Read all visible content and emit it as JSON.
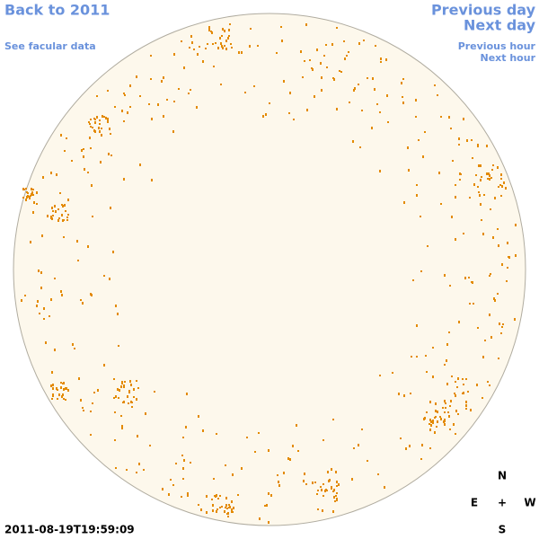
{
  "nav": {
    "back": "Back to 2011",
    "facular": "See facular data",
    "previous_day": "Previous day",
    "next_day": "Next day",
    "previous_hour": "Previous hour",
    "next_hour": "Next hour"
  },
  "timestamp": "2011-08-19T19:59:09",
  "compass": {
    "north": "N",
    "east": "E",
    "center": "+",
    "west": "W",
    "south": "S"
  }
}
